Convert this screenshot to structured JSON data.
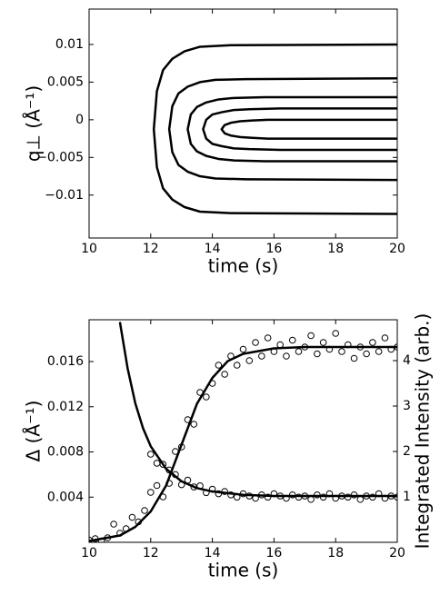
{
  "chart_data": [
    {
      "type": "line",
      "xlabel": "time (s)",
      "ylabel": "q⊥ (Å⁻¹)",
      "xlim": [
        10,
        20
      ],
      "xticks": [
        10,
        12,
        14,
        16,
        18,
        20
      ],
      "ylim": [
        -0.0157,
        0.0147
      ],
      "yticks": [
        {
          "value": -0.01,
          "label": "−0.01"
        },
        {
          "value": -0.005,
          "label": "−0.005"
        },
        0,
        0.005,
        0.01
      ],
      "series": [
        {
          "color": "#000000",
          "style": "line",
          "x": [
            20,
            14.6,
            13.6,
            13.1,
            12.7,
            12.4,
            12.2,
            12.1,
            12.2,
            12.4,
            12.7,
            13.1,
            13.6,
            14.6,
            20
          ],
          "values": [
            -0.0125,
            -0.0124,
            -0.0122,
            -0.0116,
            -0.0106,
            -0.0091,
            -0.0063,
            -0.00125,
            0.0038,
            0.0066,
            0.0081,
            0.0091,
            0.0097,
            0.0099,
            0.01
          ]
        },
        {
          "color": "#000000",
          "style": "line",
          "x": [
            20,
            15.1,
            14.1,
            13.6,
            13.2,
            12.9,
            12.7,
            12.6,
            12.7,
            12.9,
            13.2,
            13.6,
            14.1,
            15.1,
            20
          ],
          "values": [
            -0.008,
            -0.0079,
            -0.0078,
            -0.0075,
            -0.0069,
            -0.006,
            -0.0043,
            -0.00125,
            0.0018,
            0.0035,
            0.0044,
            0.005,
            0.0053,
            0.0054,
            0.0055
          ]
        },
        {
          "color": "#000000",
          "style": "line",
          "x": [
            20,
            15.7,
            14.7,
            14.2,
            13.8,
            13.5,
            13.3,
            13.2,
            13.3,
            13.5,
            13.8,
            14.2,
            14.7,
            15.7,
            20
          ],
          "values": [
            -0.0055,
            -0.0055,
            -0.0054,
            -0.0052,
            -0.0048,
            -0.0042,
            -0.0032,
            -0.00125,
            0.0007,
            0.0017,
            0.0023,
            0.0027,
            0.0029,
            0.003,
            0.003
          ]
        },
        {
          "color": "#000000",
          "style": "line",
          "x": [
            20,
            16.2,
            15.2,
            14.7,
            14.3,
            14,
            13.8,
            13.7,
            13.8,
            14,
            14.3,
            14.7,
            15.2,
            16.2,
            20
          ],
          "values": [
            -0.004,
            -0.004,
            -0.0039,
            -0.0038,
            -0.0035,
            -0.0032,
            -0.0025,
            -0.00125,
            0,
            0.0007,
            0.001,
            0.0013,
            0.0014,
            0.0015,
            0.0015
          ]
        },
        {
          "color": "#000000",
          "style": "line",
          "x": [
            20,
            16.8,
            15.8,
            15.3,
            14.9,
            14.6,
            14.4,
            14.3,
            14.4,
            14.6,
            14.9,
            15.3,
            15.8,
            16.8,
            20
          ],
          "values": [
            -0.0025,
            -0.0025,
            -0.0025,
            -0.0024,
            -0.0023,
            -0.0021,
            -0.0018,
            -0.00125,
            -0.0007,
            -0.0004,
            -0.0002,
            -0.0001,
            0,
            0,
            0
          ]
        }
      ]
    },
    {
      "type": "scatter",
      "xlabel": "time (s)",
      "ylabel": "Δ (Å⁻¹)",
      "y2label": "Integrated Intensity (arb.)",
      "xlim": [
        10,
        20
      ],
      "xticks": [
        10,
        12,
        14,
        16,
        18,
        20
      ],
      "ylim": [
        0,
        0.0197
      ],
      "yticks": [
        0.004,
        0.008,
        0.012,
        0.016
      ],
      "y2lim": [
        0,
        4.9
      ],
      "y2ticks": [
        1,
        2,
        3,
        4
      ],
      "series": [
        {
          "color": "#000000",
          "style": "markers",
          "x": [
            12,
            12.2,
            12.4,
            12.6,
            12.8,
            13,
            13.2,
            13.4,
            13.6,
            13.8,
            14,
            14.2,
            14.4,
            14.6,
            14.8,
            15,
            15.2,
            15.4,
            15.6,
            15.8,
            16,
            16.2,
            16.4,
            16.6,
            16.8,
            17,
            17.2,
            17.4,
            17.6,
            17.8,
            18,
            18.2,
            18.4,
            18.6,
            18.8,
            19,
            19.2,
            19.4,
            19.6,
            19.8,
            20
          ],
          "values": [
            0.0078,
            0.007,
            0.0069,
            0.0064,
            0.006,
            0.0051,
            0.0055,
            0.0049,
            0.005,
            0.0044,
            0.0047,
            0.0043,
            0.0045,
            0.0042,
            0.004,
            0.0043,
            0.0041,
            0.0039,
            0.0042,
            0.004,
            0.0043,
            0.0041,
            0.0039,
            0.0042,
            0.004,
            0.0041,
            0.0038,
            0.0042,
            0.004,
            0.0043,
            0.0039,
            0.0041,
            0.004,
            0.0042,
            0.0038,
            0.0041,
            0.004,
            0.0043,
            0.0039,
            0.0041,
            0.004
          ]
        },
        {
          "color": "#000000",
          "style": "markers",
          "axis": "y2",
          "x": [
            10,
            10.2,
            10.4,
            10.6,
            10.8,
            11,
            11.2,
            11.4,
            11.6,
            11.8,
            12,
            12.2,
            12.4,
            12.6,
            12.8,
            13,
            13.2,
            13.4,
            13.6,
            13.8,
            14,
            14.2,
            14.4,
            14.6,
            14.8,
            15,
            15.2,
            15.4,
            15.6,
            15.8,
            16,
            16.2,
            16.4,
            16.6,
            16.8,
            17,
            17.2,
            17.4,
            17.6,
            17.8,
            18,
            18.2,
            18.4,
            18.6,
            18.8,
            19,
            19.2,
            19.4,
            19.6,
            19.8,
            20
          ],
          "values": [
            0.05,
            0.08,
            0.03,
            0.1,
            0.4,
            0.2,
            0.3,
            0.55,
            0.45,
            0.7,
            1.1,
            1.25,
            1.0,
            1.3,
            2.0,
            2.1,
            2.7,
            2.6,
            3.3,
            3.2,
            3.5,
            3.9,
            3.7,
            4.1,
            3.9,
            4.25,
            4.0,
            4.4,
            4.1,
            4.5,
            4.2,
            4.35,
            4.1,
            4.45,
            4.2,
            4.3,
            4.55,
            4.15,
            4.4,
            4.25,
            4.6,
            4.2,
            4.35,
            4.05,
            4.3,
            4.15,
            4.4,
            4.2,
            4.5,
            4.25,
            4.3
          ]
        },
        {
          "color": "#000000",
          "style": "line",
          "x": [
            11,
            11.25,
            11.5,
            11.75,
            12,
            12.5,
            13,
            13.5,
            14,
            15,
            16,
            18,
            20
          ],
          "values": [
            0.0195,
            0.0154,
            0.0123,
            0.0101,
            0.0085,
            0.0065,
            0.0054,
            0.0048,
            0.0045,
            0.0042,
            0.0041,
            0.0041,
            0.0041
          ]
        },
        {
          "color": "#000000",
          "style": "line",
          "axis": "y2",
          "x": [
            10,
            11,
            11.5,
            12,
            12.5,
            13,
            13.5,
            14,
            14.5,
            15,
            16,
            17,
            18,
            19,
            20
          ],
          "values": [
            0.03,
            0.15,
            0.34,
            0.68,
            1.25,
            2.15,
            3.05,
            3.62,
            3.99,
            4.15,
            4.27,
            4.3,
            4.3,
            4.3,
            4.3
          ]
        }
      ]
    }
  ]
}
